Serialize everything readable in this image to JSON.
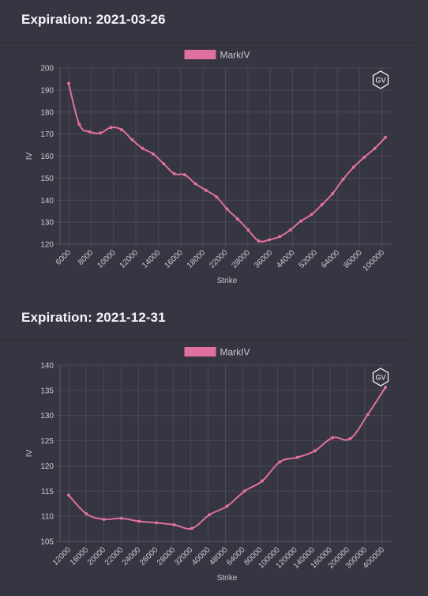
{
  "panels": [
    {
      "title": "Expiration: 2021-03-26",
      "chart_data": {
        "type": "line",
        "legend": [
          "MarkIV"
        ],
        "legend_position": "top-center",
        "xlabel": "Strike",
        "ylabel": "IV",
        "ylim": [
          120,
          200
        ],
        "yticks": [
          120,
          130,
          140,
          150,
          160,
          170,
          180,
          190,
          200
        ],
        "grid": true,
        "x_ticks": [
          "6000",
          "8000",
          "10000",
          "12000",
          "14000",
          "16000",
          "18000",
          "22000",
          "28000",
          "36000",
          "44000",
          "52000",
          "64000",
          "80000",
          "100000"
        ],
        "series": [
          {
            "name": "MarkIV",
            "color": "#e0709f",
            "values": [
              193,
              174.5,
              171,
              170.5,
              173,
              172,
              167.5,
              163.5,
              161,
              156.5,
              152,
              151.5,
              147.5,
              144.5,
              141.5,
              136,
              131.5,
              126.5,
              121.5,
              122,
              123.5,
              126.5,
              130.5,
              133.5,
              138,
              143,
              149.5,
              155,
              159.5,
              163.5,
              168.5
            ]
          }
        ]
      },
      "badge": "GV"
    },
    {
      "title": "Expiration: 2021-12-31",
      "chart_data": {
        "type": "line",
        "legend": [
          "MarkIV"
        ],
        "legend_position": "top-center",
        "xlabel": "Strike",
        "ylabel": "IV",
        "ylim": [
          105,
          140
        ],
        "yticks": [
          105,
          110,
          115,
          120,
          125,
          130,
          135,
          140
        ],
        "grid": true,
        "x_ticks": [
          "12000",
          "16000",
          "20000",
          "22000",
          "24000",
          "26000",
          "28000",
          "32000",
          "40000",
          "48000",
          "64000",
          "80000",
          "100000",
          "120000",
          "140000",
          "160000",
          "200000",
          "300000",
          "400000"
        ],
        "series": [
          {
            "name": "MarkIV",
            "color": "#e0709f",
            "values": [
              114.2,
              110.5,
              109.4,
              109.6,
              109.0,
              108.7,
              108.3,
              107.6,
              110.3,
              112.0,
              115.0,
              117.0,
              120.8,
              121.7,
              123.0,
              125.6,
              125.4,
              130.2,
              135.6
            ]
          }
        ]
      },
      "badge": "GV"
    }
  ]
}
